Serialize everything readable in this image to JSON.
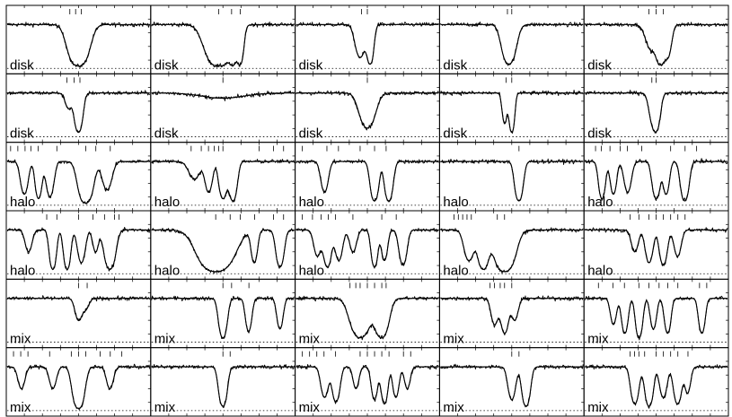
{
  "chart_data": {
    "type": "line",
    "layout": "grid of small-multiple absorption-profile panels, 6 rows by 5 columns",
    "baseline_style": "dotted line at zero flux",
    "line_color": "#000000",
    "panels": [
      {
        "label": "disk",
        "components": [
          {
            "c": 0.5,
            "d": 0.95,
            "w": 0.07
          }
        ],
        "ticks": [
          0.44,
          0.48,
          0.52
        ]
      },
      {
        "label": "disk",
        "components": [
          {
            "c": 0.47,
            "d": 0.95,
            "w": 0.09
          },
          {
            "c": 0.57,
            "d": 0.85,
            "w": 0.025
          },
          {
            "c": 0.62,
            "d": 0.9,
            "w": 0.025
          }
        ],
        "ticks": [
          0.47,
          0.56,
          0.62
        ]
      },
      {
        "label": "disk",
        "components": [
          {
            "c": 0.45,
            "d": 0.75,
            "w": 0.04
          },
          {
            "c": 0.52,
            "d": 0.9,
            "w": 0.025
          }
        ],
        "ticks": [
          0.46,
          0.5
        ]
      },
      {
        "label": "disk",
        "components": [
          {
            "c": 0.48,
            "d": 0.9,
            "w": 0.05
          }
        ],
        "ticks": [
          0.47,
          0.5
        ]
      },
      {
        "label": "disk",
        "components": [
          {
            "c": 0.47,
            "d": 0.6,
            "w": 0.05
          },
          {
            "c": 0.53,
            "d": 0.9,
            "w": 0.03
          },
          {
            "c": 0.58,
            "d": 0.75,
            "w": 0.03
          }
        ],
        "ticks": [
          0.45,
          0.5,
          0.55
        ]
      },
      {
        "label": "disk",
        "components": [
          {
            "c": 0.43,
            "d": 0.35,
            "w": 0.03
          },
          {
            "c": 0.5,
            "d": 0.9,
            "w": 0.03
          }
        ],
        "ticks": [
          0.42,
          0.47,
          0.51
        ]
      },
      {
        "label": "disk",
        "components": [
          {
            "c": 0.5,
            "d": 0.12,
            "w": 0.2
          }
        ],
        "ticks": [
          0.5
        ]
      },
      {
        "label": "disk",
        "components": [
          {
            "c": 0.5,
            "d": 0.8,
            "w": 0.06
          }
        ],
        "ticks": [
          0.5
        ]
      },
      {
        "label": "disk",
        "components": [
          {
            "c": 0.45,
            "d": 0.7,
            "w": 0.02
          },
          {
            "c": 0.5,
            "d": 0.9,
            "w": 0.02
          }
        ],
        "ticks": [
          0.46,
          0.5
        ]
      },
      {
        "label": "disk",
        "components": [
          {
            "c": 0.47,
            "d": 0.5,
            "w": 0.03
          },
          {
            "c": 0.5,
            "d": 0.85,
            "w": 0.03
          }
        ],
        "ticks": [
          0.47,
          0.5
        ]
      },
      {
        "label": "halo",
        "components": [
          {
            "c": 0.12,
            "d": 0.75,
            "w": 0.03
          },
          {
            "c": 0.22,
            "d": 0.85,
            "w": 0.025
          },
          {
            "c": 0.3,
            "d": 0.8,
            "w": 0.03
          },
          {
            "c": 0.55,
            "d": 0.95,
            "w": 0.05
          },
          {
            "c": 0.7,
            "d": 0.65,
            "w": 0.04
          }
        ],
        "ticks": [
          0.03,
          0.08,
          0.13,
          0.17,
          0.22,
          0.35,
          0.55,
          0.62,
          0.72
        ]
      },
      {
        "label": "halo",
        "components": [
          {
            "c": 0.3,
            "d": 0.4,
            "w": 0.05
          },
          {
            "c": 0.4,
            "d": 0.7,
            "w": 0.03
          },
          {
            "c": 0.5,
            "d": 0.85,
            "w": 0.03
          },
          {
            "c": 0.57,
            "d": 0.9,
            "w": 0.03
          }
        ],
        "ticks": [
          0.28,
          0.35,
          0.4,
          0.44,
          0.47,
          0.5,
          0.75,
          0.85,
          0.92
        ]
      },
      {
        "label": "halo",
        "components": [
          {
            "c": 0.2,
            "d": 0.7,
            "w": 0.03
          },
          {
            "c": 0.55,
            "d": 0.9,
            "w": 0.03
          },
          {
            "c": 0.65,
            "d": 0.9,
            "w": 0.03
          }
        ],
        "ticks": [
          0.05,
          0.22,
          0.3,
          0.45,
          0.55,
          0.63
        ]
      },
      {
        "label": "halo",
        "components": [
          {
            "c": 0.55,
            "d": 0.9,
            "w": 0.03
          }
        ],
        "ticks": [
          0.55
        ]
      },
      {
        "label": "halo",
        "components": [
          {
            "c": 0.12,
            "d": 0.85,
            "w": 0.025
          },
          {
            "c": 0.2,
            "d": 0.75,
            "w": 0.025
          },
          {
            "c": 0.3,
            "d": 0.7,
            "w": 0.03
          },
          {
            "c": 0.5,
            "d": 0.85,
            "w": 0.03
          },
          {
            "c": 0.57,
            "d": 0.75,
            "w": 0.025
          },
          {
            "c": 0.7,
            "d": 0.9,
            "w": 0.03
          }
        ],
        "ticks": [
          0.08,
          0.12,
          0.18,
          0.25,
          0.3,
          0.4,
          0.6,
          0.7,
          0.78
        ]
      },
      {
        "label": "halo",
        "components": [
          {
            "c": 0.15,
            "d": 0.5,
            "w": 0.03
          },
          {
            "c": 0.32,
            "d": 0.9,
            "w": 0.025
          },
          {
            "c": 0.42,
            "d": 0.9,
            "w": 0.025
          },
          {
            "c": 0.52,
            "d": 0.75,
            "w": 0.03
          },
          {
            "c": 0.62,
            "d": 0.5,
            "w": 0.025
          },
          {
            "c": 0.72,
            "d": 0.9,
            "w": 0.04
          }
        ],
        "ticks": [
          0.28,
          0.35,
          0.5,
          0.6,
          0.68,
          0.75,
          0.78
        ]
      },
      {
        "label": "halo",
        "components": [
          {
            "c": 0.45,
            "d": 0.95,
            "w": 0.12
          },
          {
            "c": 0.72,
            "d": 0.75,
            "w": 0.025
          },
          {
            "c": 0.9,
            "d": 0.85,
            "w": 0.03
          }
        ],
        "ticks": [
          0.45,
          0.55,
          0.62,
          0.72,
          0.85,
          0.92
        ]
      },
      {
        "label": "halo",
        "components": [
          {
            "c": 0.15,
            "d": 0.6,
            "w": 0.03
          },
          {
            "c": 0.22,
            "d": 0.85,
            "w": 0.03
          },
          {
            "c": 0.3,
            "d": 0.7,
            "w": 0.03
          },
          {
            "c": 0.4,
            "d": 0.5,
            "w": 0.03
          },
          {
            "c": 0.55,
            "d": 0.85,
            "w": 0.025
          },
          {
            "c": 0.62,
            "d": 0.7,
            "w": 0.025
          },
          {
            "c": 0.75,
            "d": 0.8,
            "w": 0.03
          }
        ],
        "ticks": [
          0.05,
          0.12,
          0.18,
          0.23,
          0.28,
          0.4,
          0.6,
          0.7
        ]
      },
      {
        "label": "halo",
        "components": [
          {
            "c": 0.2,
            "d": 0.7,
            "w": 0.04
          },
          {
            "c": 0.3,
            "d": 0.9,
            "w": 0.04
          },
          {
            "c": 0.45,
            "d": 0.95,
            "w": 0.07
          }
        ],
        "ticks": [
          0.1,
          0.13,
          0.16,
          0.19,
          0.22,
          0.4,
          0.45
        ]
      },
      {
        "label": "halo",
        "components": [
          {
            "c": 0.35,
            "d": 0.5,
            "w": 0.03
          },
          {
            "c": 0.45,
            "d": 0.75,
            "w": 0.03
          },
          {
            "c": 0.55,
            "d": 0.8,
            "w": 0.03
          },
          {
            "c": 0.65,
            "d": 0.6,
            "w": 0.03
          }
        ],
        "ticks": [
          0.32,
          0.38,
          0.45,
          0.5,
          0.55,
          0.6,
          0.65,
          0.7
        ]
      },
      {
        "label": "mix",
        "components": [
          {
            "c": 0.5,
            "d": 0.5,
            "w": 0.03
          },
          {
            "c": 0.55,
            "d": 0.25,
            "w": 0.03
          }
        ],
        "ticks": [
          0.5,
          0.56
        ]
      },
      {
        "label": "mix",
        "components": [
          {
            "c": 0.5,
            "d": 0.9,
            "w": 0.03
          },
          {
            "c": 0.68,
            "d": 0.75,
            "w": 0.025
          },
          {
            "c": 0.9,
            "d": 0.7,
            "w": 0.025
          }
        ],
        "ticks": [
          0.5,
          0.56,
          0.68
        ]
      },
      {
        "label": "mix",
        "components": [
          {
            "c": 0.45,
            "d": 0.9,
            "w": 0.07
          },
          {
            "c": 0.6,
            "d": 0.9,
            "w": 0.05
          }
        ],
        "ticks": [
          0.38,
          0.42,
          0.45,
          0.5,
          0.55,
          0.6,
          0.63
        ]
      },
      {
        "label": "mix",
        "components": [
          {
            "c": 0.38,
            "d": 0.6,
            "w": 0.03
          },
          {
            "c": 0.45,
            "d": 0.8,
            "w": 0.03
          },
          {
            "c": 0.52,
            "d": 0.5,
            "w": 0.03
          }
        ],
        "ticks": [
          0.35,
          0.38,
          0.42,
          0.45,
          0.5
        ]
      },
      {
        "label": "mix",
        "components": [
          {
            "c": 0.2,
            "d": 0.6,
            "w": 0.025
          },
          {
            "c": 0.28,
            "d": 0.8,
            "w": 0.025
          },
          {
            "c": 0.38,
            "d": 0.9,
            "w": 0.025
          },
          {
            "c": 0.48,
            "d": 0.7,
            "w": 0.025
          },
          {
            "c": 0.58,
            "d": 0.8,
            "w": 0.025
          },
          {
            "c": 0.82,
            "d": 0.8,
            "w": 0.025
          }
        ],
        "ticks": [
          0.1,
          0.2,
          0.28,
          0.38,
          0.45,
          0.52,
          0.58,
          0.65,
          0.8,
          0.85
        ]
      },
      {
        "label": "mix",
        "components": [
          {
            "c": 0.1,
            "d": 0.5,
            "w": 0.03
          },
          {
            "c": 0.32,
            "d": 0.5,
            "w": 0.03
          },
          {
            "c": 0.5,
            "d": 0.95,
            "w": 0.04
          },
          {
            "c": 0.72,
            "d": 0.5,
            "w": 0.03
          }
        ],
        "ticks": [
          0.05,
          0.1,
          0.15,
          0.3,
          0.45,
          0.5,
          0.55,
          0.65,
          0.72,
          0.8
        ]
      },
      {
        "label": "mix",
        "components": [
          {
            "c": 0.5,
            "d": 0.9,
            "w": 0.03
          }
        ],
        "ticks": [
          0.5,
          0.55
        ]
      },
      {
        "label": "mix",
        "components": [
          {
            "c": 0.2,
            "d": 0.7,
            "w": 0.03
          },
          {
            "c": 0.28,
            "d": 0.8,
            "w": 0.03
          },
          {
            "c": 0.42,
            "d": 0.5,
            "w": 0.025
          },
          {
            "c": 0.55,
            "d": 0.75,
            "w": 0.025
          },
          {
            "c": 0.62,
            "d": 0.85,
            "w": 0.025
          },
          {
            "c": 0.7,
            "d": 0.7,
            "w": 0.025
          },
          {
            "c": 0.78,
            "d": 0.5,
            "w": 0.025
          }
        ],
        "ticks": [
          0.05,
          0.1,
          0.15,
          0.2,
          0.28,
          0.45,
          0.5,
          0.55,
          0.6,
          0.65,
          0.75,
          0.8
        ]
      },
      {
        "label": "mix",
        "components": [
          {
            "c": 0.5,
            "d": 0.75,
            "w": 0.03
          },
          {
            "c": 0.6,
            "d": 0.9,
            "w": 0.03
          }
        ],
        "ticks": [
          0.5,
          0.55
        ]
      },
      {
        "label": "mix",
        "components": [
          {
            "c": 0.35,
            "d": 0.85,
            "w": 0.03
          },
          {
            "c": 0.45,
            "d": 0.9,
            "w": 0.03
          },
          {
            "c": 0.55,
            "d": 0.7,
            "w": 0.03
          },
          {
            "c": 0.65,
            "d": 0.85,
            "w": 0.03
          },
          {
            "c": 0.72,
            "d": 0.6,
            "w": 0.025
          }
        ],
        "ticks": [
          0.32,
          0.35,
          0.38,
          0.42,
          0.5,
          0.55,
          0.6,
          0.65,
          0.72
        ]
      }
    ]
  }
}
